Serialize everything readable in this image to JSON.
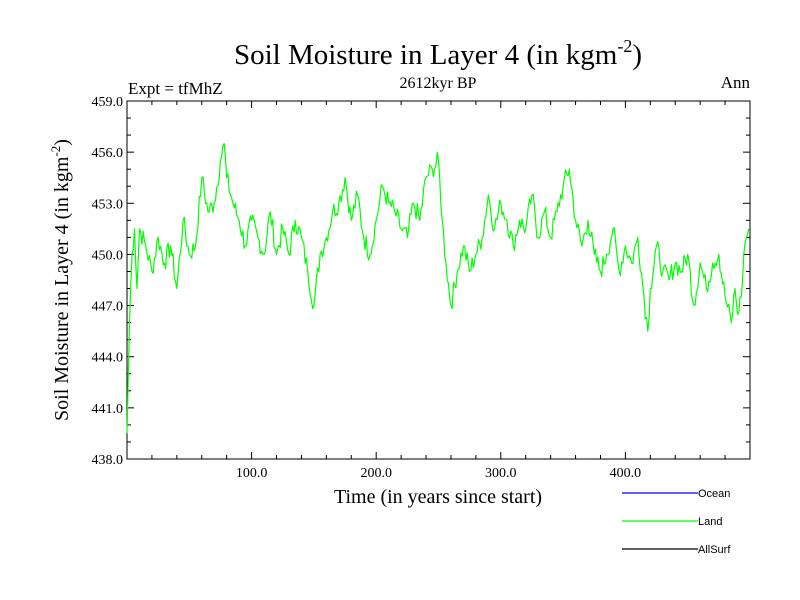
{
  "chart_data": {
    "type": "line",
    "title_main": "Soil Moisture in Layer 4 (in kgm",
    "title_sup": "-2",
    "title_close": ")",
    "subtitle_left": "Expt = tfMhZ",
    "subtitle_center": "2612kyr BP",
    "subtitle_right": "Ann",
    "xlabel": "Time (in years since start)",
    "ylabel_main": "Soil Moisture in Layer 4 (in kgm",
    "ylabel_sup": "-2",
    "ylabel_close": ")",
    "xlim": [
      0,
      500
    ],
    "ylim": [
      438,
      459
    ],
    "x_ticks": [
      100,
      200,
      300,
      400
    ],
    "x_tick_labels": [
      "100.0",
      "200.0",
      "300.0",
      "400.0"
    ],
    "y_ticks": [
      438,
      441,
      444,
      447,
      450,
      453,
      456,
      459
    ],
    "y_tick_labels": [
      "438.0",
      "441.0",
      "444.0",
      "447.0",
      "450.0",
      "453.0",
      "456.0",
      "459.0"
    ],
    "legend": [
      {
        "name": "Ocean",
        "color": "#0000ff"
      },
      {
        "name": "Land",
        "color": "#00ff00"
      },
      {
        "name": "AllSurf",
        "color": "#000000"
      }
    ],
    "series": [
      {
        "name": "Land",
        "color": "#00ff00",
        "x": [
          0,
          2,
          4,
          6,
          8,
          10,
          15,
          20,
          25,
          30,
          35,
          40,
          45,
          50,
          55,
          60,
          65,
          70,
          75,
          78,
          80,
          85,
          90,
          95,
          100,
          105,
          110,
          115,
          120,
          125,
          130,
          135,
          140,
          145,
          150,
          155,
          160,
          165,
          170,
          175,
          180,
          185,
          190,
          195,
          200,
          205,
          210,
          215,
          220,
          225,
          230,
          235,
          240,
          245,
          250,
          253,
          256,
          260,
          265,
          270,
          275,
          280,
          285,
          290,
          295,
          300,
          305,
          310,
          315,
          320,
          325,
          330,
          335,
          340,
          345,
          350,
          355,
          360,
          365,
          370,
          375,
          380,
          385,
          390,
          395,
          400,
          405,
          410,
          415,
          418,
          420,
          425,
          430,
          435,
          440,
          445,
          450,
          455,
          460,
          465,
          470,
          475,
          480,
          485,
          488,
          490,
          493,
          495,
          497,
          499
        ],
        "values": [
          439.5,
          446,
          450,
          451.5,
          448,
          451.5,
          450.5,
          449,
          451,
          449.5,
          450.5,
          448,
          452,
          450,
          450.5,
          454.5,
          452.5,
          453,
          455.5,
          456.5,
          454.5,
          453,
          452,
          450.5,
          452,
          451,
          450,
          452.5,
          450,
          451.5,
          450,
          452,
          451,
          449,
          447,
          450,
          451,
          452.5,
          453,
          454.5,
          452,
          453.5,
          451,
          450,
          452,
          454,
          453,
          452.5,
          451.5,
          451,
          453,
          452,
          454.5,
          455,
          455.5,
          452,
          449.5,
          447,
          449,
          450.5,
          449,
          450,
          451,
          453.5,
          451.5,
          453,
          452,
          450.5,
          452,
          451.5,
          453.5,
          451,
          452.5,
          451,
          452.5,
          454,
          455,
          452,
          450.5,
          452,
          450,
          449,
          450,
          451.5,
          449,
          450.5,
          449.5,
          451,
          447.5,
          445.5,
          448,
          450.5,
          449,
          448.5,
          449.5,
          449,
          450,
          447,
          449.5,
          448,
          449.5,
          450,
          447.5,
          446,
          448,
          446.5,
          447.5,
          450,
          451,
          451.5
        ]
      }
    ]
  }
}
